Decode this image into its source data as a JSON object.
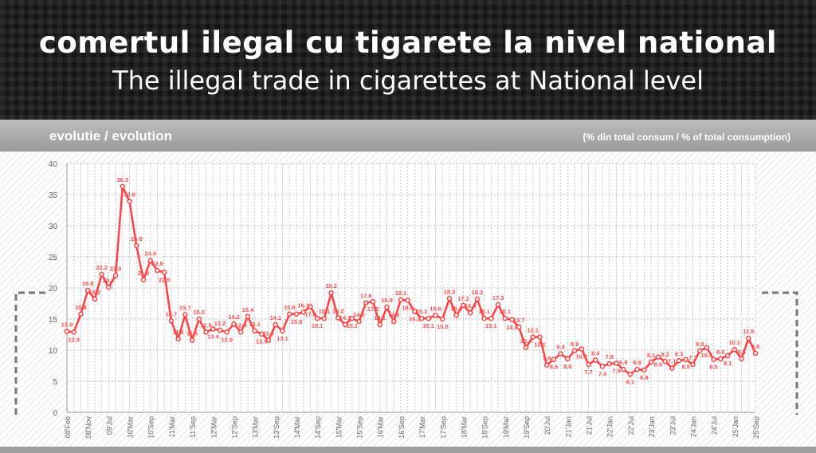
{
  "header": {
    "title": "comertul ilegal cu tigarete la nivel national",
    "subtitle": "The illegal trade in cigarettes at National level"
  },
  "section": {
    "left": "evolutie / evolution",
    "right": "(% din total consum / % of total consumption)"
  },
  "colors": {
    "line": "#ff4040",
    "label": "#ff4a4a"
  },
  "chart_data": {
    "type": "line",
    "title": "evolutie / evolution",
    "ylabel": "% din total consum / % of total consumption",
    "ylim": [
      0,
      40
    ],
    "yticks": [
      0,
      5,
      10,
      15,
      20,
      25,
      30,
      35,
      40
    ],
    "grid": true,
    "xtick_labels": [
      "08'Feb",
      "08'Nov",
      "09'Jul",
      "10'Mar",
      "10'Sep",
      "11'Mar",
      "11'Sep",
      "12'Mar",
      "12'Sep",
      "13'Mar",
      "13'Sep",
      "14'Mar",
      "14'Sep",
      "15'Mar",
      "15'Sep",
      "16'Mar",
      "16'Sep",
      "17'Mar",
      "17'Sep",
      "18'Mar",
      "18'Sep",
      "19'Mar",
      "19'Sep",
      "20'Jul",
      "21'Jan",
      "21'Jul",
      "22'Jan",
      "22'Jul",
      "23'Jan",
      "23'Jul",
      "24'Jan",
      "24'Jul",
      "25'Jan",
      "25'Sep"
    ],
    "values": [
      13.0,
      12.9,
      15.8,
      19.6,
      18.2,
      22.2,
      20.1,
      22.0,
      36.3,
      33.9,
      26.8,
      21.3,
      24.4,
      22.8,
      22.5,
      14.7,
      11.8,
      15.7,
      11.6,
      15.0,
      12.9,
      13.4,
      13.2,
      12.9,
      14.2,
      12.9,
      15.4,
      13.1,
      12.6,
      11.6,
      14.1,
      13.1,
      15.8,
      15.8,
      16.1,
      17.0,
      15.1,
      15.1,
      19.2,
      15.2,
      14.1,
      15.1,
      14.6,
      17.6,
      17.8,
      14.1,
      16.9,
      14.6,
      18.1,
      18.0,
      16.2,
      15.1,
      15.1,
      15.6,
      15.0,
      18.3,
      15.6,
      17.2,
      16.0,
      18.2,
      15.1,
      15.1,
      17.3,
      15.1,
      14.9,
      13.7,
      10.4,
      12.1,
      12.1,
      7.6,
      8.5,
      9.4,
      8.6,
      9.9,
      10.2,
      7.7,
      8.4,
      7.4,
      7.8,
      7.9,
      6.9,
      6.1,
      6.9,
      6.8,
      8.1,
      8.9,
      8.2,
      7.1,
      8.3,
      8.5,
      7.7,
      9.9,
      10.4,
      8.5,
      8.6,
      9.1,
      10.1,
      8.6,
      11.9,
      9.5
    ]
  }
}
